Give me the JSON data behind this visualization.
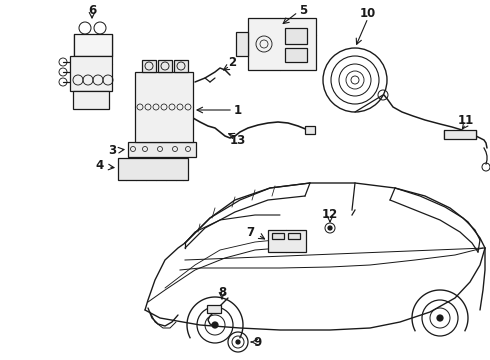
{
  "background_color": "#ffffff",
  "line_color": "#1a1a1a",
  "figsize": [
    4.9,
    3.6
  ],
  "dpi": 100,
  "image_b64": ""
}
